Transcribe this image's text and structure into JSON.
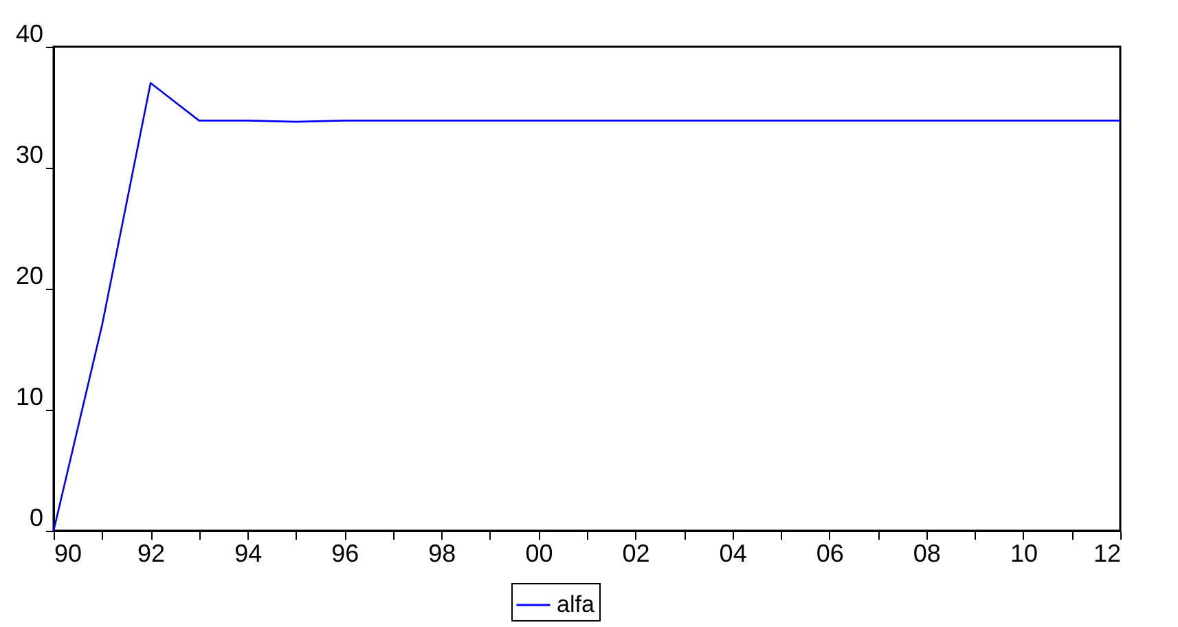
{
  "chart_data": {
    "type": "line",
    "x": [
      1990,
      1991,
      1992,
      1993,
      1994,
      1995,
      1996,
      1997,
      1998,
      1999,
      2000,
      2001,
      2002,
      2003,
      2004,
      2005,
      2006,
      2007,
      2008,
      2009,
      2010,
      2011,
      2012
    ],
    "series": [
      {
        "name": "alfa",
        "color": "#0000ff",
        "values": [
          0,
          17.0,
          37.0,
          33.9,
          33.9,
          33.8,
          33.9,
          33.9,
          33.9,
          33.9,
          33.9,
          33.9,
          33.9,
          33.9,
          33.9,
          33.9,
          33.9,
          33.9,
          33.9,
          33.9,
          33.9,
          33.9,
          33.9
        ]
      }
    ],
    "xlim": [
      1990,
      2012
    ],
    "xticks": [
      {
        "value": 1990,
        "label": "90"
      },
      {
        "value": 1991,
        "label": null
      },
      {
        "value": 1992,
        "label": "92"
      },
      {
        "value": 1993,
        "label": null
      },
      {
        "value": 1994,
        "label": "94"
      },
      {
        "value": 1995,
        "label": null
      },
      {
        "value": 1996,
        "label": "96"
      },
      {
        "value": 1997,
        "label": null
      },
      {
        "value": 1998,
        "label": "98"
      },
      {
        "value": 1999,
        "label": null
      },
      {
        "value": 2000,
        "label": "00"
      },
      {
        "value": 2001,
        "label": null
      },
      {
        "value": 2002,
        "label": "02"
      },
      {
        "value": 2003,
        "label": null
      },
      {
        "value": 2004,
        "label": "04"
      },
      {
        "value": 2005,
        "label": null
      },
      {
        "value": 2006,
        "label": "06"
      },
      {
        "value": 2007,
        "label": null
      },
      {
        "value": 2008,
        "label": "08"
      },
      {
        "value": 2009,
        "label": null
      },
      {
        "value": 2010,
        "label": "10"
      },
      {
        "value": 2011,
        "label": null
      },
      {
        "value": 2012,
        "label": "12"
      }
    ],
    "ylim": [
      0,
      40
    ],
    "yticks": [
      0,
      10,
      20,
      30,
      40
    ],
    "grid": false,
    "legend": "bottom",
    "line_style": "solid"
  }
}
